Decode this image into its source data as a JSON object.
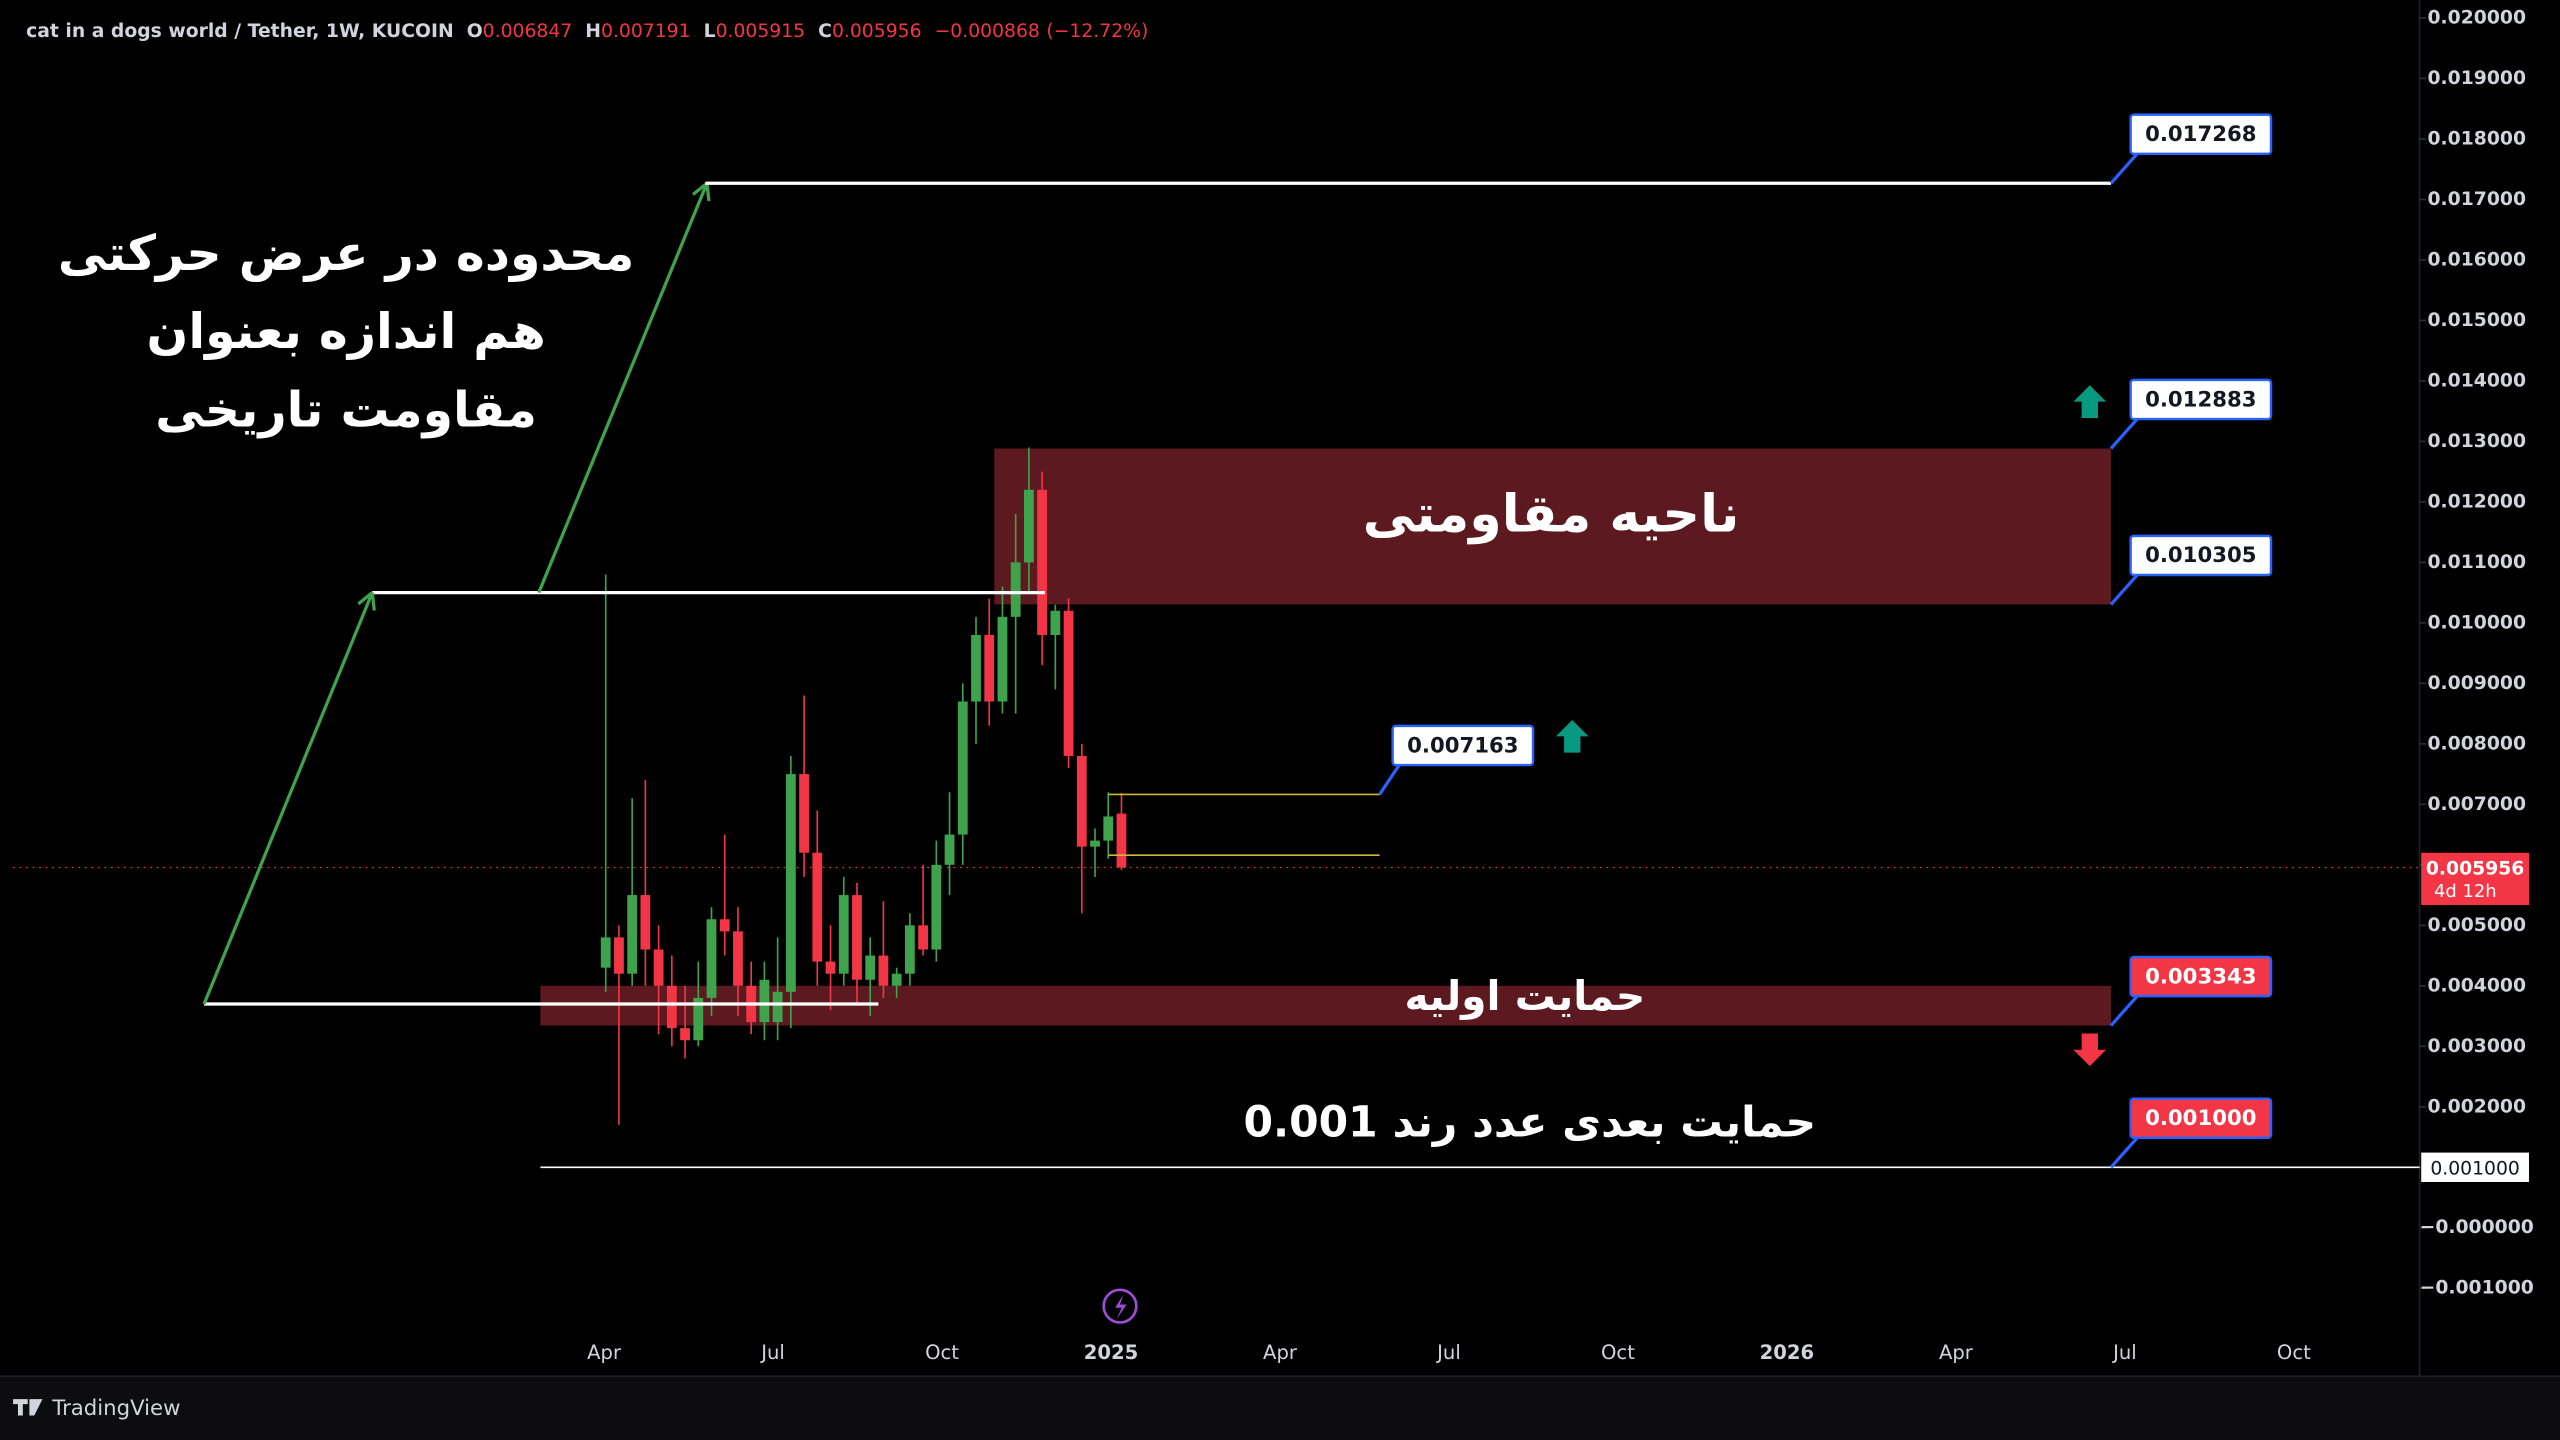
{
  "header": {
    "title": "cat in a dogs world / Tether, 1W, KUCOIN",
    "ohlc_keys": [
      "O",
      "H",
      "L",
      "C"
    ],
    "change": {
      "value": -0.000868,
      "label": "−0.000868"
    },
    "change_pct": {
      "value": -12.72,
      "label": "(−12.72%)"
    }
  },
  "chart_data": {
    "type": "candlestick",
    "up_color": "#3fa34d",
    "down_color": "#f23645",
    "candles": [
      [
        0.0043,
        0.0108,
        0.0039,
        0.0048
      ],
      [
        0.0048,
        0.005,
        0.0017,
        0.0042
      ],
      [
        0.0042,
        0.0071,
        0.004,
        0.0055
      ],
      [
        0.0055,
        0.0074,
        0.004,
        0.0046
      ],
      [
        0.0046,
        0.005,
        0.0032,
        0.004
      ],
      [
        0.004,
        0.0045,
        0.003,
        0.0033
      ],
      [
        0.0033,
        0.004,
        0.0028,
        0.0031
      ],
      [
        0.0031,
        0.0044,
        0.003,
        0.0038
      ],
      [
        0.0038,
        0.0053,
        0.0035,
        0.0051
      ],
      [
        0.0051,
        0.0065,
        0.0045,
        0.0049
      ],
      [
        0.0049,
        0.0053,
        0.0035,
        0.004
      ],
      [
        0.004,
        0.0044,
        0.0032,
        0.0034
      ],
      [
        0.0034,
        0.0044,
        0.0031,
        0.0041
      ],
      [
        0.0034,
        0.0048,
        0.0031,
        0.0039
      ],
      [
        0.0039,
        0.0078,
        0.0033,
        0.0075
      ],
      [
        0.0075,
        0.0088,
        0.0058,
        0.0062
      ],
      [
        0.0062,
        0.0069,
        0.004,
        0.0044
      ],
      [
        0.0044,
        0.005,
        0.0036,
        0.0042
      ],
      [
        0.0042,
        0.0058,
        0.004,
        0.0055
      ],
      [
        0.0055,
        0.0057,
        0.0037,
        0.0041
      ],
      [
        0.0041,
        0.0048,
        0.0035,
        0.0045
      ],
      [
        0.0045,
        0.0054,
        0.0038,
        0.004
      ],
      [
        0.004,
        0.0043,
        0.0038,
        0.0042
      ],
      [
        0.0042,
        0.0052,
        0.004,
        0.005
      ],
      [
        0.005,
        0.006,
        0.0045,
        0.0046
      ],
      [
        0.0046,
        0.0064,
        0.0044,
        0.006
      ],
      [
        0.006,
        0.0072,
        0.0055,
        0.0065
      ],
      [
        0.0065,
        0.009,
        0.006,
        0.0087
      ],
      [
        0.0087,
        0.0101,
        0.008,
        0.0098
      ],
      [
        0.0098,
        0.0104,
        0.0083,
        0.0087
      ],
      [
        0.0087,
        0.0106,
        0.0085,
        0.0101
      ],
      [
        0.0101,
        0.0118,
        0.0085,
        0.011
      ],
      [
        0.011,
        0.0129,
        0.0105,
        0.0122
      ],
      [
        0.0122,
        0.0125,
        0.0093,
        0.0098
      ],
      [
        0.0098,
        0.0103,
        0.0089,
        0.0102
      ],
      [
        0.0102,
        0.0104,
        0.0076,
        0.0078
      ],
      [
        0.0078,
        0.008,
        0.0052,
        0.0063
      ],
      [
        0.0063,
        0.0066,
        0.0058,
        0.0064
      ],
      [
        0.0064,
        0.0072,
        0.0061,
        0.0068
      ],
      [
        0.006847,
        0.007191,
        0.005915,
        0.005956
      ]
    ],
    "x_labels": [
      "Apr",
      "Jul",
      "Oct",
      "2025",
      "Apr",
      "Jul",
      "Oct",
      "2026",
      "Apr",
      "Jul",
      "Oct"
    ],
    "ylim": [
      -0.002456,
      0.020297
    ],
    "yticks": [
      {
        "value": 0.02,
        "label": "0.020000"
      },
      {
        "value": 0.019,
        "label": "0.019000"
      },
      {
        "value": 0.018,
        "label": "0.018000"
      },
      {
        "value": 0.017,
        "label": "0.017000"
      },
      {
        "value": 0.016,
        "label": "0.016000"
      },
      {
        "value": 0.015,
        "label": "0.015000"
      },
      {
        "value": 0.014,
        "label": "0.014000"
      },
      {
        "value": 0.013,
        "label": "0.013000"
      },
      {
        "value": 0.012,
        "label": "0.012000"
      },
      {
        "value": 0.011,
        "label": "0.011000"
      },
      {
        "value": 0.01,
        "label": "0.010000"
      },
      {
        "value": 0.009,
        "label": "0.009000"
      },
      {
        "value": 0.008,
        "label": "0.008000"
      },
      {
        "value": 0.007,
        "label": "0.007000"
      },
      {
        "value": 0.006,
        "label": "0.006000"
      },
      {
        "value": 0.005,
        "label": "0.005000"
      },
      {
        "value": 0.004,
        "label": "0.004000"
      },
      {
        "value": 0.003,
        "label": "0.003000"
      },
      {
        "value": 0.002,
        "label": "0.002000"
      },
      {
        "value": 0.001,
        "label": "0.001000"
      },
      {
        "value": 0,
        "label": "−0.000000"
      },
      {
        "value": -0.001,
        "label": "−0.001000"
      }
    ],
    "countdown": "4d 12h",
    "levels": [
      0.017268,
      0.012883,
      0.010305,
      0.007163,
      0.003343,
      {
        "value": 0.001,
        "label": "0.001000"
      }
    ],
    "level_colors": [
      "#ffffff",
      "#ffffff",
      "#ffffff",
      "#ffffff",
      "#f23645",
      "#f23645"
    ],
    "support_zone_top": 0.004,
    "range_lines": [
      0.0037,
      0.0105
    ],
    "lower_box_line": 0.00616,
    "annotations": {
      "range_note": [
        "محدوده در عرض حرکتی",
        "هم اندازه بعنوان",
        "مقاومت تاریخی"
      ],
      "resistance": "ناحیه مقاومتی",
      "support": "حمایت اولیه",
      "next_support": "حمایت بعدی عدد رند 0.001"
    }
  },
  "footer": {
    "brand": "TradingView"
  }
}
